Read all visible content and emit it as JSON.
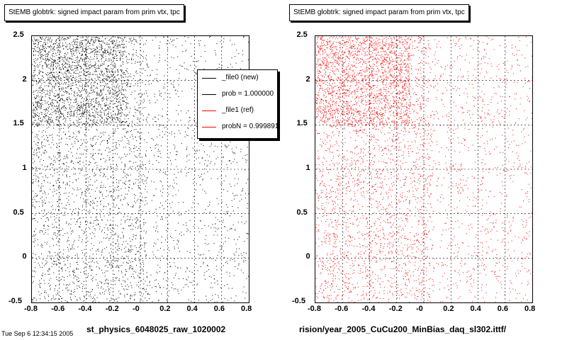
{
  "left_panel": {
    "title": "StEMB globtrk: signed impact param from prim vtx, tpc",
    "x_title": "st_physics_6048025_raw_1020002",
    "legend": [
      {
        "label": "_file0 (new)",
        "color": "#000000"
      },
      {
        "label": "prob = 1.000000",
        "color": "#000000"
      },
      {
        "label": "_file1 (ref)",
        "color": "#ff0000"
      },
      {
        "label": "probN = 0.999891",
        "color": "#ff0000"
      }
    ]
  },
  "right_panel": {
    "title": "StEMB globtrk: signed impact param from prim vtx, tpc",
    "x_title": "rision/year_2005_CuCu200_MinBias_daq_sl302.ittf/"
  },
  "corner_text": "Tue Sep  6 12:34:15 2005",
  "chart_data": [
    {
      "type": "scatter",
      "title": "StEMB globtrk: signed impact param from prim vtx, tpc",
      "xlabel": "st_physics_6048025_raw_1020002",
      "xlim": [
        -0.8,
        0.8
      ],
      "ylim": [
        -0.5,
        2.5
      ],
      "x_ticks": [
        "-0.8",
        "-0.6",
        "-0.4",
        "-0.2",
        "-0",
        "0.2",
        "0.4",
        "0.6",
        "0.8"
      ],
      "y_ticks": [
        "-0.5",
        "0",
        "0.5",
        "1",
        "1.5",
        "2",
        "2.5"
      ],
      "color": "#000000",
      "grid": true,
      "legend_position": "top-right",
      "density": {
        "dense_region_x": [
          -0.8,
          -0.1
        ],
        "dense_region_y": [
          1.5,
          2.5
        ]
      }
    },
    {
      "type": "scatter",
      "title": "StEMB globtrk: signed impact param from prim vtx, tpc",
      "xlabel": "rision/year_2005_CuCu200_MinBias_daq_sl302.ittf/",
      "xlim": [
        -0.8,
        0.8
      ],
      "ylim": [
        -0.5,
        2.5
      ],
      "x_ticks": [
        "-0.8",
        "-0.6",
        "-0.4",
        "-0.2",
        "-0",
        "0.2",
        "0.4",
        "0.6",
        "0.8"
      ],
      "y_ticks": [
        "-0.5",
        "0",
        "0.5",
        "1",
        "1.5",
        "2",
        "2.5"
      ],
      "color": "#ff0000",
      "grid": true,
      "density": {
        "dense_region_x": [
          -0.8,
          -0.1
        ],
        "dense_region_y": [
          1.5,
          2.5
        ]
      }
    }
  ]
}
